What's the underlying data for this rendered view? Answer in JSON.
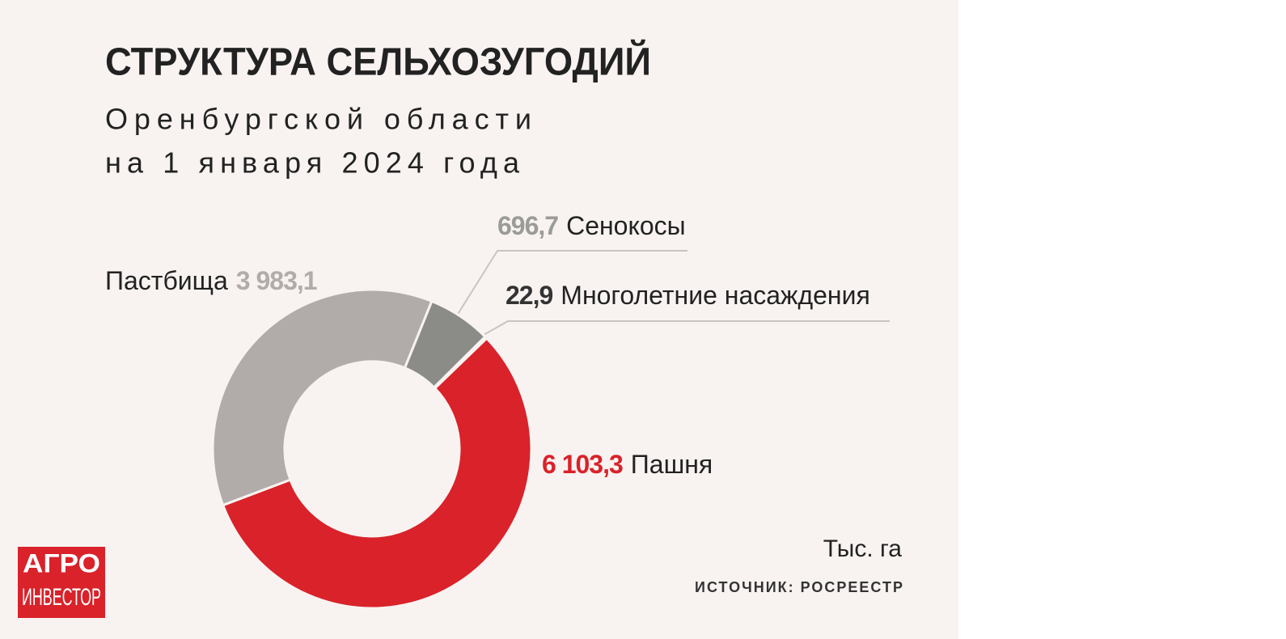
{
  "chart_data": {
    "type": "donut",
    "title": "СТРУКТУРА СЕЛЬХОЗУГОДИЙ",
    "subtitle": [
      "Оренбургской области",
      "на 1 января 2024 года"
    ],
    "categories": [
      "Пашня",
      "Пастбища",
      "Сенокосы",
      "Многолетние насаждения"
    ],
    "values": [
      6103.3,
      3983.1,
      696.7,
      22.9
    ],
    "value_labels": [
      "6 103,3",
      "3 983,1",
      "696,7",
      "22,9"
    ],
    "colors": [
      "#d9222a",
      "#b1acaa",
      "#8b8c88",
      "#3b3b3b"
    ],
    "unit": "Тыс. га",
    "source": "ИСТОЧНИК: РОСРЕЕСТР"
  },
  "branding": {
    "logo": [
      "АГРО",
      "ИНВЕСТОР"
    ]
  }
}
